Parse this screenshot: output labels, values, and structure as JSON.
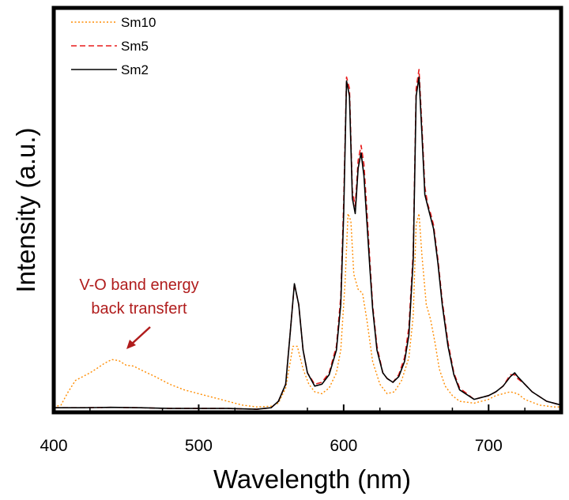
{
  "chart_data": {
    "type": "line",
    "title": "",
    "xlabel": "Wavelength (nm)",
    "ylabel": "Intensity (a.u.)",
    "xlim": [
      400,
      750
    ],
    "ylim": [
      0,
      1.0
    ],
    "x_ticks": [
      400,
      500,
      600,
      700
    ],
    "x_tick_labels": [
      "400",
      "500",
      "600",
      "700"
    ],
    "grid": false,
    "legend_position": "top-left",
    "annotation": {
      "lines": [
        "V-O band energy",
        "back transfert"
      ],
      "color": "#b01c1c",
      "points_to": [
        440,
        0.1
      ]
    },
    "series": [
      {
        "name": "Sm10",
        "color": "#ff8c00",
        "style": "dotted",
        "points": [
          [
            400,
            0.01
          ],
          [
            405,
            0.015
          ],
          [
            410,
            0.05
          ],
          [
            415,
            0.08
          ],
          [
            420,
            0.09
          ],
          [
            425,
            0.1
          ],
          [
            430,
            0.112
          ],
          [
            435,
            0.125
          ],
          [
            440,
            0.135
          ],
          [
            445,
            0.132
          ],
          [
            450,
            0.12
          ],
          [
            455,
            0.118
          ],
          [
            460,
            0.108
          ],
          [
            470,
            0.09
          ],
          [
            480,
            0.07
          ],
          [
            490,
            0.055
          ],
          [
            500,
            0.045
          ],
          [
            510,
            0.035
          ],
          [
            520,
            0.025
          ],
          [
            530,
            0.015
          ],
          [
            540,
            0.01
          ],
          [
            550,
            0.012
          ],
          [
            555,
            0.02
          ],
          [
            560,
            0.06
          ],
          [
            565,
            0.17
          ],
          [
            568,
            0.17
          ],
          [
            572,
            0.11
          ],
          [
            576,
            0.07
          ],
          [
            580,
            0.05
          ],
          [
            585,
            0.045
          ],
          [
            590,
            0.06
          ],
          [
            595,
            0.1
          ],
          [
            598,
            0.16
          ],
          [
            601,
            0.34
          ],
          [
            603,
            0.52
          ],
          [
            605,
            0.5
          ],
          [
            607,
            0.36
          ],
          [
            610,
            0.32
          ],
          [
            613,
            0.31
          ],
          [
            616,
            0.24
          ],
          [
            620,
            0.13
          ],
          [
            625,
            0.07
          ],
          [
            630,
            0.045
          ],
          [
            635,
            0.05
          ],
          [
            640,
            0.08
          ],
          [
            645,
            0.14
          ],
          [
            648,
            0.25
          ],
          [
            650,
            0.49
          ],
          [
            652,
            0.52
          ],
          [
            654,
            0.41
          ],
          [
            657,
            0.28
          ],
          [
            660,
            0.24
          ],
          [
            663,
            0.18
          ],
          [
            666,
            0.11
          ],
          [
            670,
            0.065
          ],
          [
            675,
            0.04
          ],
          [
            680,
            0.025
          ],
          [
            690,
            0.02
          ],
          [
            700,
            0.03
          ],
          [
            705,
            0.04
          ],
          [
            710,
            0.045
          ],
          [
            715,
            0.05
          ],
          [
            720,
            0.045
          ],
          [
            725,
            0.03
          ],
          [
            735,
            0.015
          ],
          [
            745,
            0.01
          ],
          [
            750,
            0.01
          ]
        ]
      },
      {
        "name": "Sm5",
        "color": "#e81c1c",
        "style": "dashed",
        "points": [
          [
            400,
            0.008
          ],
          [
            420,
            0.008
          ],
          [
            440,
            0.009
          ],
          [
            460,
            0.008
          ],
          [
            480,
            0.006
          ],
          [
            500,
            0.006
          ],
          [
            520,
            0.006
          ],
          [
            540,
            0.004
          ],
          [
            550,
            0.008
          ],
          [
            555,
            0.025
          ],
          [
            560,
            0.07
          ],
          [
            563,
            0.2
          ],
          [
            566,
            0.335
          ],
          [
            569,
            0.28
          ],
          [
            572,
            0.16
          ],
          [
            575,
            0.1
          ],
          [
            580,
            0.07
          ],
          [
            585,
            0.075
          ],
          [
            590,
            0.1
          ],
          [
            595,
            0.17
          ],
          [
            598,
            0.3
          ],
          [
            600,
            0.55
          ],
          [
            602,
            0.88
          ],
          [
            604,
            0.85
          ],
          [
            606,
            0.58
          ],
          [
            608,
            0.54
          ],
          [
            610,
            0.66
          ],
          [
            612,
            0.7
          ],
          [
            614,
            0.65
          ],
          [
            616,
            0.53
          ],
          [
            618,
            0.4
          ],
          [
            620,
            0.28
          ],
          [
            623,
            0.17
          ],
          [
            627,
            0.1
          ],
          [
            630,
            0.085
          ],
          [
            634,
            0.075
          ],
          [
            638,
            0.095
          ],
          [
            642,
            0.14
          ],
          [
            645,
            0.22
          ],
          [
            648,
            0.42
          ],
          [
            650,
            0.85
          ],
          [
            652,
            0.9
          ],
          [
            654,
            0.75
          ],
          [
            656,
            0.59
          ],
          [
            658,
            0.545
          ],
          [
            660,
            0.52
          ],
          [
            662,
            0.49
          ],
          [
            665,
            0.4
          ],
          [
            668,
            0.29
          ],
          [
            672,
            0.18
          ],
          [
            676,
            0.1
          ],
          [
            680,
            0.06
          ],
          [
            690,
            0.03
          ],
          [
            700,
            0.04
          ],
          [
            705,
            0.05
          ],
          [
            710,
            0.065
          ],
          [
            715,
            0.095
          ],
          [
            718,
            0.095
          ],
          [
            720,
            0.085
          ],
          [
            725,
            0.07
          ],
          [
            730,
            0.05
          ],
          [
            740,
            0.025
          ],
          [
            750,
            0.015
          ]
        ]
      },
      {
        "name": "Sm2",
        "color": "#000000",
        "style": "solid",
        "points": [
          [
            400,
            0.008
          ],
          [
            420,
            0.008
          ],
          [
            440,
            0.009
          ],
          [
            460,
            0.008
          ],
          [
            480,
            0.006
          ],
          [
            500,
            0.006
          ],
          [
            520,
            0.006
          ],
          [
            540,
            0.004
          ],
          [
            550,
            0.008
          ],
          [
            555,
            0.025
          ],
          [
            560,
            0.07
          ],
          [
            563,
            0.2
          ],
          [
            566,
            0.335
          ],
          [
            569,
            0.28
          ],
          [
            572,
            0.16
          ],
          [
            575,
            0.1
          ],
          [
            580,
            0.065
          ],
          [
            585,
            0.07
          ],
          [
            590,
            0.095
          ],
          [
            595,
            0.16
          ],
          [
            598,
            0.28
          ],
          [
            600,
            0.52
          ],
          [
            602,
            0.87
          ],
          [
            604,
            0.83
          ],
          [
            606,
            0.56
          ],
          [
            608,
            0.52
          ],
          [
            610,
            0.64
          ],
          [
            612,
            0.68
          ],
          [
            614,
            0.62
          ],
          [
            616,
            0.5
          ],
          [
            618,
            0.38
          ],
          [
            620,
            0.27
          ],
          [
            623,
            0.16
          ],
          [
            627,
            0.1
          ],
          [
            630,
            0.085
          ],
          [
            634,
            0.075
          ],
          [
            638,
            0.09
          ],
          [
            642,
            0.13
          ],
          [
            645,
            0.2
          ],
          [
            648,
            0.4
          ],
          [
            650,
            0.83
          ],
          [
            652,
            0.88
          ],
          [
            654,
            0.73
          ],
          [
            656,
            0.57
          ],
          [
            658,
            0.54
          ],
          [
            660,
            0.51
          ],
          [
            662,
            0.48
          ],
          [
            665,
            0.39
          ],
          [
            668,
            0.28
          ],
          [
            672,
            0.17
          ],
          [
            676,
            0.095
          ],
          [
            680,
            0.055
          ],
          [
            690,
            0.03
          ],
          [
            700,
            0.04
          ],
          [
            705,
            0.05
          ],
          [
            710,
            0.065
          ],
          [
            715,
            0.09
          ],
          [
            718,
            0.1
          ],
          [
            720,
            0.09
          ],
          [
            725,
            0.07
          ],
          [
            730,
            0.05
          ],
          [
            740,
            0.025
          ],
          [
            750,
            0.015
          ]
        ]
      }
    ]
  }
}
